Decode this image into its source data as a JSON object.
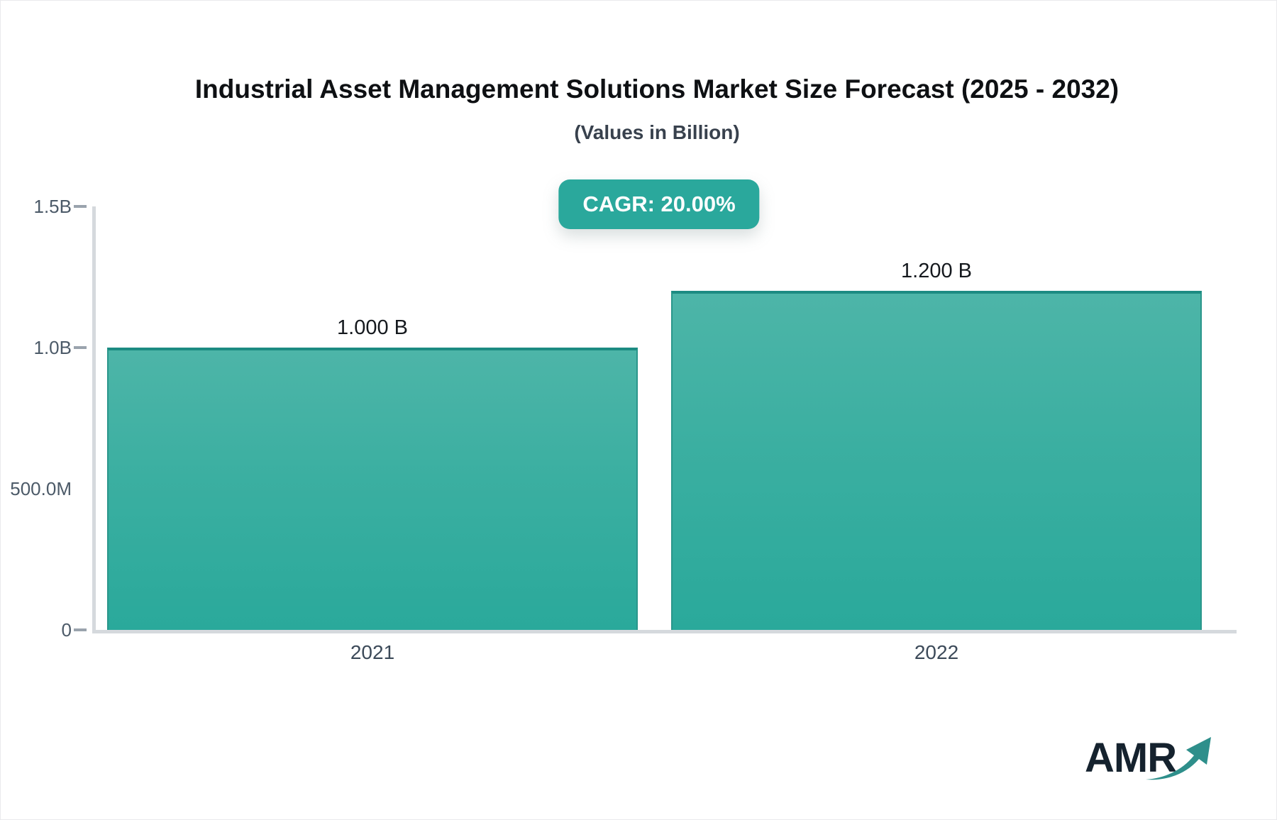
{
  "header": {
    "title": "Industrial Asset Management Solutions Market Size Forecast (2025 - 2032)",
    "subtitle": "(Values in Billion)"
  },
  "badge": {
    "label": "CAGR: 20.00%"
  },
  "chart_data": {
    "type": "bar",
    "title": "Industrial Asset Management Solutions Market Size Forecast (2025 - 2032)",
    "subtitle": "(Values in Billion)",
    "unit": "Billion",
    "cagr_label": "CAGR: 20.00%",
    "categories": [
      "2021",
      "2022"
    ],
    "values": [
      1.0,
      1.2
    ],
    "bar_labels": [
      "1.000 B",
      "1.200 B"
    ],
    "ylim": [
      0,
      1.5
    ],
    "y_ticks": [
      {
        "label": "1.5B",
        "value": 1.5,
        "dash": true
      },
      {
        "label": "1.0B",
        "value": 1.0,
        "dash": true
      },
      {
        "label": "500.0M",
        "value": 0.5,
        "dash": false
      },
      {
        "label": "0",
        "value": 0.0,
        "dash": true
      }
    ],
    "grid": false,
    "legend": false,
    "colors": {
      "bar_gradient_top": "#4DB5A8",
      "bar_gradient_bottom": "#2AA99B",
      "bar_border": "#1C8B82",
      "badge_bg": "#2AA89C",
      "axis_line": "#D5D9DD",
      "tick_mark": "#9AA3AD",
      "logo_text": "#15222E",
      "logo_arrow": "#2E8F8B"
    }
  },
  "logo": {
    "text": "AMR"
  }
}
